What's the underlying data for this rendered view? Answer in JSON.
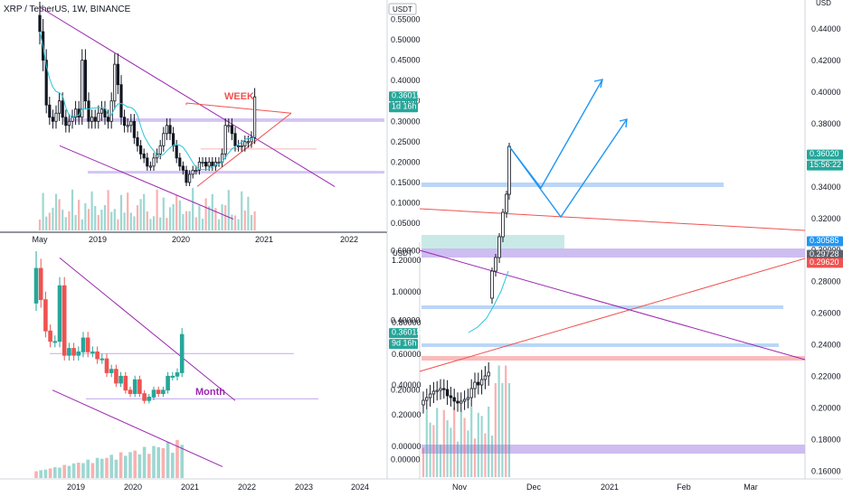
{
  "header": {
    "symbol": "XRP / TetherUS, 1W, BINANCE",
    "currency_badge": "USDT"
  },
  "colors": {
    "up": "#26a69a",
    "down": "#ef5350",
    "candle_body": "#131722",
    "trend_purple": "#9c27b0",
    "trend_red": "#ef5350",
    "forecast_blue": "#2196f3",
    "level_purple": "#c9b6f0",
    "level_blue": "#bbd6f7",
    "level_red": "#f8b4b4",
    "zone_teal": "#b2dfdb",
    "price_tag": "#26a69a"
  },
  "charts": [
    {
      "id": "weekly",
      "type": "candlestick",
      "annotation": "WEEK",
      "unit": "USDT",
      "y_ticks": [
        "0.55000",
        "0.50000",
        "0.45000",
        "0.40000",
        "0.35000",
        "0.30000",
        "0.25000",
        "0.20000",
        "0.15000",
        "0.10000",
        "0.05000"
      ],
      "x_ticks": [
        "May",
        "2019",
        "2020",
        "2021",
        "2022"
      ],
      "price_tag": {
        "value": "0.36015",
        "countdown": "1d 16h"
      }
    },
    {
      "id": "monthly",
      "type": "candlestick",
      "annotation": "Month",
      "y_ticks": [
        "0.60000",
        "0.40000",
        "0.20000",
        "0.00000"
      ],
      "x_ticks": [
        "2019",
        "2020",
        "2021",
        "2022",
        "2023",
        "2024"
      ],
      "price_tag": {
        "value": "0.36015",
        "countdown": "9d 16h"
      }
    },
    {
      "id": "daily",
      "type": "candlestick",
      "unit": "USD",
      "sub_unit": "USDT",
      "y_ticks": [
        "0.44000",
        "0.42000",
        "0.40000",
        "0.38000",
        "0.36000",
        "0.34000",
        "0.32000",
        "0.30000",
        "0.28000",
        "0.26000",
        "0.24000",
        "0.22000",
        "0.20000",
        "0.18000",
        "0.16000"
      ],
      "inner_y_ticks": [
        "1.20000",
        "1.00000",
        "0.80000",
        "0.60000",
        "0.40000",
        "0.20000",
        "0.00000"
      ],
      "x_ticks": [
        "Nov",
        "Dec",
        "2021",
        "Feb",
        "Mar"
      ],
      "price_tag": {
        "value": "0.36020",
        "countdown": "15:56:22"
      },
      "level_tags": [
        "0.30585",
        "0.29728",
        "0.29620"
      ]
    }
  ],
  "chart_data": [
    {
      "type": "candlestick",
      "title": "XRP / TetherUS, 1W, BINANCE",
      "timeframe": "1W",
      "x_range": [
        "2018-05",
        "2022-06"
      ],
      "ylim": [
        0.03,
        0.58
      ],
      "ylabel": "USDT",
      "close": [
        0.52,
        0.45,
        0.34,
        0.31,
        0.3,
        0.32,
        0.35,
        0.31,
        0.29,
        0.3,
        0.31,
        0.33,
        0.31,
        0.45,
        0.35,
        0.3,
        0.31,
        0.3,
        0.32,
        0.33,
        0.31,
        0.3,
        0.35,
        0.44,
        0.39,
        0.31,
        0.29,
        0.29,
        0.3,
        0.26,
        0.24,
        0.22,
        0.21,
        0.19,
        0.19,
        0.21,
        0.22,
        0.24,
        0.27,
        0.29,
        0.27,
        0.24,
        0.21,
        0.19,
        0.18,
        0.15,
        0.17,
        0.18,
        0.18,
        0.2,
        0.2,
        0.19,
        0.2,
        0.19,
        0.2,
        0.2,
        0.22,
        0.29,
        0.29,
        0.27,
        0.24,
        0.24,
        0.24,
        0.25,
        0.25,
        0.26,
        0.36
      ],
      "annotation": "WEEK"
    },
    {
      "type": "candlestick",
      "timeframe": "1M",
      "x_range": [
        "2018-05",
        "2024-06"
      ],
      "ylim": [
        -0.05,
        0.62
      ],
      "close": [
        0.55,
        0.46,
        0.37,
        0.34,
        0.34,
        0.5,
        0.3,
        0.32,
        0.3,
        0.31,
        0.35,
        0.31,
        0.31,
        0.29,
        0.29,
        0.25,
        0.26,
        0.22,
        0.24,
        0.2,
        0.19,
        0.23,
        0.19,
        0.17,
        0.18,
        0.2,
        0.19,
        0.2,
        0.24,
        0.24,
        0.25,
        0.36
      ],
      "annotation": "Month"
    },
    {
      "type": "candlestick",
      "timeframe": "1D",
      "x_range": [
        "2020-10-20",
        "2021-03-25"
      ],
      "ylim": [
        0.155,
        0.455
      ],
      "ylabel": "USD",
      "close": [
        0.245,
        0.248,
        0.252,
        0.255,
        0.256,
        0.258,
        0.257,
        0.25,
        0.248,
        0.244,
        0.242,
        0.244,
        0.246,
        0.248,
        0.258,
        0.265,
        0.262,
        0.268,
        0.272,
        0.276,
        0.29,
        0.3,
        0.31,
        0.33,
        0.35,
        0.36
      ],
      "forecast_path": [
        [
          25,
          0.36
        ],
        [
          33,
          0.338
        ],
        [
          42,
          0.398
        ],
        [
          38,
          0.338
        ],
        [
          47,
          0.38
        ]
      ],
      "levels": [
        0.30585,
        0.29728,
        0.2962
      ]
    }
  ]
}
